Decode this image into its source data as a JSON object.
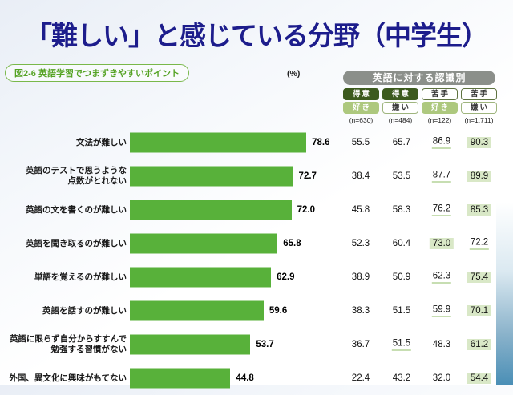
{
  "slide": {
    "title": "「難しい」と感じている分野（中学生）"
  },
  "caption": {
    "figure_badge": "図2-6 英語学習でつまずきやすいポイント",
    "percent_label": "(%)"
  },
  "header": {
    "group_label": "英語に対する認識別",
    "columns": [
      {
        "top": "得意",
        "bottom": "好き",
        "n": "(n=630)",
        "top_style": "dark",
        "bottom_style": "light"
      },
      {
        "top": "得意",
        "bottom": "嫌い",
        "n": "(n=484)",
        "top_style": "dark",
        "bottom_style": "outline-light"
      },
      {
        "top": "苦手",
        "bottom": "好き",
        "n": "(n=122)",
        "top_style": "outline-dark",
        "bottom_style": "light"
      },
      {
        "top": "苦手",
        "bottom": "嫌い",
        "n": "(n=1,711)",
        "top_style": "outline-dark",
        "bottom_style": "outline-light"
      }
    ]
  },
  "rows": [
    {
      "label": [
        "文法が難しい"
      ],
      "value": "78.6",
      "cells": [
        {
          "v": "55.5",
          "e": ""
        },
        {
          "v": "65.7",
          "e": ""
        },
        {
          "v": "86.9",
          "e": "u"
        },
        {
          "v": "90.3",
          "e": "h"
        }
      ]
    },
    {
      "label": [
        "英語のテストで思うような",
        "点数がとれない"
      ],
      "value": "72.7",
      "cells": [
        {
          "v": "38.4",
          "e": ""
        },
        {
          "v": "53.5",
          "e": ""
        },
        {
          "v": "87.7",
          "e": "u"
        },
        {
          "v": "89.9",
          "e": "h"
        }
      ]
    },
    {
      "label": [
        "英語の文を書くのが難しい"
      ],
      "value": "72.0",
      "cells": [
        {
          "v": "45.8",
          "e": ""
        },
        {
          "v": "58.3",
          "e": ""
        },
        {
          "v": "76.2",
          "e": "u"
        },
        {
          "v": "85.3",
          "e": "h"
        }
      ]
    },
    {
      "label": [
        "英語を聞き取るのが難しい"
      ],
      "value": "65.8",
      "cells": [
        {
          "v": "52.3",
          "e": ""
        },
        {
          "v": "60.4",
          "e": ""
        },
        {
          "v": "73.0",
          "e": "h"
        },
        {
          "v": "72.2",
          "e": "u"
        }
      ]
    },
    {
      "label": [
        "単語を覚えるのが難しい"
      ],
      "value": "62.9",
      "cells": [
        {
          "v": "38.9",
          "e": ""
        },
        {
          "v": "50.9",
          "e": ""
        },
        {
          "v": "62.3",
          "e": "u"
        },
        {
          "v": "75.4",
          "e": "h"
        }
      ]
    },
    {
      "label": [
        "英語を話すのが難しい"
      ],
      "value": "59.6",
      "cells": [
        {
          "v": "38.3",
          "e": ""
        },
        {
          "v": "51.5",
          "e": ""
        },
        {
          "v": "59.9",
          "e": "u"
        },
        {
          "v": "70.1",
          "e": "h"
        }
      ]
    },
    {
      "label": [
        "英語に限らず自分からすすんで",
        "勉強する習慣がない"
      ],
      "value": "53.7",
      "cells": [
        {
          "v": "36.7",
          "e": ""
        },
        {
          "v": "51.5",
          "e": "u"
        },
        {
          "v": "48.3",
          "e": ""
        },
        {
          "v": "61.2",
          "e": "h"
        }
      ]
    },
    {
      "label": [
        "外国、異文化に興味がもてない"
      ],
      "value": "44.8",
      "cells": [
        {
          "v": "22.4",
          "e": ""
        },
        {
          "v": "43.2",
          "e": ""
        },
        {
          "v": "32.0",
          "e": ""
        },
        {
          "v": "54.4",
          "e": "h"
        }
      ]
    }
  ],
  "chart_data": {
    "type": "bar",
    "orientation": "horizontal",
    "title": "図2-6 英語学習でつまずきやすいポイント",
    "slide_title": "「難しい」と感じている分野（中学生）",
    "unit": "%",
    "xlim": [
      0,
      100
    ],
    "grid": false,
    "categories": [
      "文法が難しい",
      "英語のテストで思うような点数がとれない",
      "英語の文を書くのが難しい",
      "英語を聞き取るのが難しい",
      "単語を覚えるのが難しい",
      "英語を話すのが難しい",
      "英語に限らず自分からすすんで勉強する習慣がない",
      "外国、異文化に興味がもてない"
    ],
    "values": [
      78.6,
      72.7,
      72.0,
      65.8,
      62.9,
      59.6,
      53.7,
      44.8
    ],
    "series": [
      {
        "name": "得意・好き (n=630)",
        "values": [
          55.5,
          38.4,
          45.8,
          52.3,
          38.9,
          38.3,
          36.7,
          22.4
        ]
      },
      {
        "name": "得意・嫌い (n=484)",
        "values": [
          65.7,
          53.5,
          58.3,
          60.4,
          50.9,
          51.5,
          51.5,
          43.2
        ]
      },
      {
        "name": "苦手・好き (n=122)",
        "values": [
          86.9,
          87.7,
          76.2,
          73.0,
          62.3,
          59.9,
          48.3,
          32.0
        ]
      },
      {
        "name": "苦手・嫌い (n=1,711)",
        "values": [
          90.3,
          89.9,
          85.3,
          72.2,
          75.4,
          70.1,
          61.2,
          54.4
        ]
      }
    ],
    "annotations": {
      "highlight_bg": "max value in each row has light green background",
      "underline": "second-highest value in each row is underlined"
    },
    "colors": {
      "bar": "#58b13a",
      "title": "#1d1d8c",
      "badge_dark": "#3c5a1e",
      "badge_light": "#adc87e",
      "header_gray": "#8b8f8a",
      "highlight_bg": "#d9e8c7",
      "underline": "#8fbc66"
    }
  }
}
